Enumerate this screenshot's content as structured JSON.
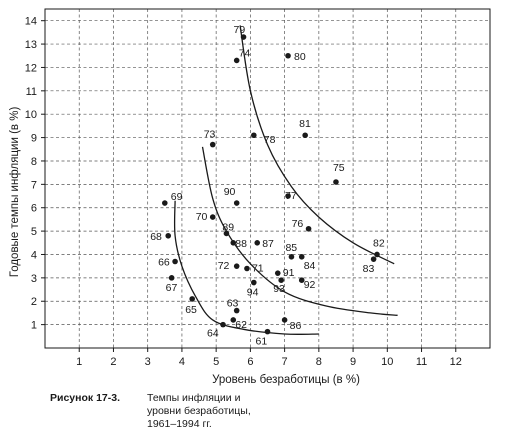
{
  "chart_data": {
    "type": "scatter",
    "xlabel": "Уровень безработицы (в %)",
    "ylabel": "Годовые темпы инфляции (в %)",
    "xlim": [
      0,
      13
    ],
    "ylim": [
      0,
      14.5
    ],
    "x_ticks": [
      "1",
      "2",
      "3",
      "4",
      "5",
      "6",
      "7",
      "8",
      "9",
      "10",
      "11",
      "12"
    ],
    "y_ticks": [
      "1",
      "2",
      "3",
      "4",
      "5",
      "6",
      "7",
      "8",
      "9",
      "10",
      "11",
      "12",
      "13",
      "14"
    ],
    "grid": true,
    "points": [
      {
        "label": "61",
        "x": 6.5,
        "y": 0.7
      },
      {
        "label": "62",
        "x": 5.5,
        "y": 1.2
      },
      {
        "label": "63",
        "x": 5.6,
        "y": 1.6
      },
      {
        "label": "64",
        "x": 5.2,
        "y": 1.0
      },
      {
        "label": "65",
        "x": 4.3,
        "y": 2.1
      },
      {
        "label": "66",
        "x": 3.8,
        "y": 3.7
      },
      {
        "label": "67",
        "x": 3.7,
        "y": 3.0
      },
      {
        "label": "68",
        "x": 3.6,
        "y": 4.8
      },
      {
        "label": "69",
        "x": 3.5,
        "y": 6.2
      },
      {
        "label": "70",
        "x": 4.9,
        "y": 5.6
      },
      {
        "label": "71",
        "x": 5.9,
        "y": 3.4
      },
      {
        "label": "72",
        "x": 5.6,
        "y": 3.5
      },
      {
        "label": "73",
        "x": 4.9,
        "y": 8.7
      },
      {
        "label": "74",
        "x": 5.6,
        "y": 12.3
      },
      {
        "label": "75",
        "x": 8.5,
        "y": 7.1
      },
      {
        "label": "76",
        "x": 7.7,
        "y": 5.1
      },
      {
        "label": "77",
        "x": 7.1,
        "y": 6.5
      },
      {
        "label": "78",
        "x": 6.1,
        "y": 9.1
      },
      {
        "label": "79",
        "x": 5.8,
        "y": 13.3
      },
      {
        "label": "80",
        "x": 7.1,
        "y": 12.5
      },
      {
        "label": "81",
        "x": 7.6,
        "y": 9.1
      },
      {
        "label": "82",
        "x": 9.7,
        "y": 4.0
      },
      {
        "label": "83",
        "x": 9.6,
        "y": 3.8
      },
      {
        "label": "84",
        "x": 7.5,
        "y": 3.9
      },
      {
        "label": "85",
        "x": 7.2,
        "y": 3.9
      },
      {
        "label": "86",
        "x": 7.0,
        "y": 1.2
      },
      {
        "label": "87",
        "x": 6.2,
        "y": 4.5
      },
      {
        "label": "88",
        "x": 5.5,
        "y": 4.5
      },
      {
        "label": "89",
        "x": 5.3,
        "y": 4.9
      },
      {
        "label": "90",
        "x": 5.6,
        "y": 6.2
      },
      {
        "label": "91",
        "x": 6.8,
        "y": 3.2
      },
      {
        "label": "92",
        "x": 7.5,
        "y": 2.9
      },
      {
        "label": "93",
        "x": 6.9,
        "y": 2.9
      },
      {
        "label": "94",
        "x": 6.1,
        "y": 2.8
      }
    ],
    "curves": [
      {
        "points": [
          [
            5.7,
            13.8
          ],
          [
            6.0,
            11.0
          ],
          [
            6.5,
            8.7
          ],
          [
            7.2,
            6.9
          ],
          [
            8.0,
            5.6
          ],
          [
            9.0,
            4.5
          ],
          [
            10.2,
            3.6
          ]
        ]
      },
      {
        "points": [
          [
            4.6,
            8.6
          ],
          [
            4.9,
            6.4
          ],
          [
            5.3,
            5.0
          ],
          [
            6.0,
            3.6
          ],
          [
            7.0,
            2.4
          ],
          [
            8.2,
            1.8
          ],
          [
            9.5,
            1.5
          ],
          [
            10.3,
            1.4
          ]
        ]
      },
      {
        "points": [
          [
            3.8,
            6.3
          ],
          [
            3.8,
            4.8
          ],
          [
            4.0,
            3.5
          ],
          [
            4.4,
            2.2
          ],
          [
            4.9,
            1.2
          ],
          [
            5.8,
            0.8
          ],
          [
            7.0,
            0.6
          ],
          [
            8.0,
            0.6
          ]
        ]
      }
    ]
  },
  "caption": {
    "label": "Рисунок  17-3.",
    "lines": [
      "Темпы инфляции и",
      "уровни безработицы,",
      "1961–1994 гг."
    ]
  }
}
